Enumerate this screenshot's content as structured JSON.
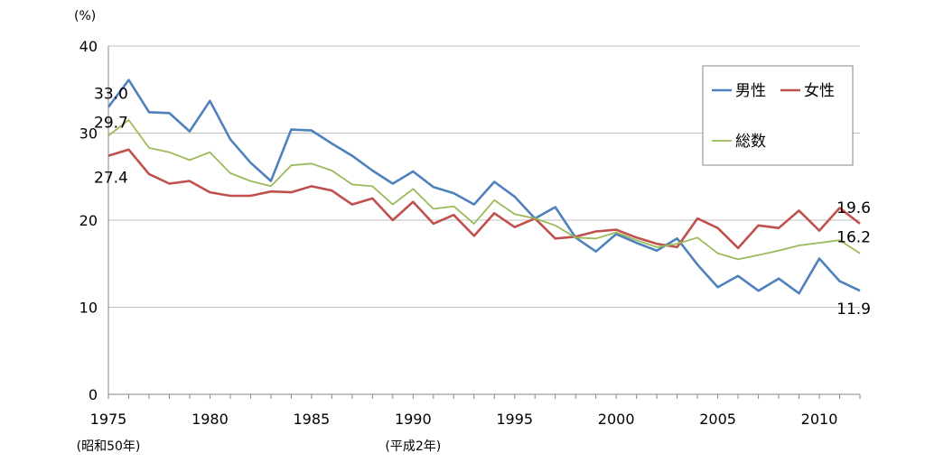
{
  "chart_data": {
    "type": "line",
    "ylabel_unit": "(%)",
    "ylim": [
      0,
      40
    ],
    "yticks": [
      "0",
      "10",
      "20",
      "30",
      "40"
    ],
    "xlim": [
      1975,
      2012
    ],
    "xticks": [
      "1975",
      "1980",
      "1985",
      "1990",
      "1995",
      "2000",
      "2005",
      "2010"
    ],
    "x_sublabels": [
      {
        "at": 1975,
        "text": "(昭和50年)"
      },
      {
        "at": 1990,
        "text": "(平成2年)"
      }
    ],
    "grid": "horizontal",
    "legend_position": "top-right",
    "x": [
      1975,
      1976,
      1977,
      1978,
      1979,
      1980,
      1981,
      1982,
      1983,
      1984,
      1985,
      1986,
      1987,
      1988,
      1989,
      1990,
      1991,
      1992,
      1993,
      1994,
      1995,
      1996,
      1997,
      1998,
      1999,
      2000,
      2001,
      2002,
      2003,
      2004,
      2005,
      2006,
      2007,
      2008,
      2009,
      2010,
      2011,
      2012
    ],
    "series": [
      {
        "name": "男性",
        "color": "#4f81bd",
        "values": [
          33.0,
          36.1,
          32.4,
          32.3,
          30.2,
          33.7,
          29.3,
          26.6,
          24.5,
          30.4,
          30.3,
          28.8,
          27.4,
          25.7,
          24.2,
          25.6,
          23.8,
          23.1,
          21.8,
          24.4,
          22.7,
          20.2,
          21.5,
          18.0,
          16.4,
          18.4,
          17.4,
          16.5,
          17.9,
          14.9,
          12.3,
          13.6,
          11.9,
          13.3,
          11.6,
          15.6,
          13.0,
          11.9
        ]
      },
      {
        "name": "女性",
        "color": "#c0504d",
        "values": [
          27.4,
          28.1,
          25.3,
          24.2,
          24.5,
          23.2,
          22.8,
          22.8,
          23.3,
          23.2,
          23.9,
          23.4,
          21.8,
          22.5,
          20.0,
          22.1,
          19.6,
          20.6,
          18.2,
          20.8,
          19.2,
          20.2,
          17.9,
          18.1,
          18.7,
          18.9,
          18.0,
          17.3,
          16.9,
          20.2,
          19.1,
          16.8,
          19.4,
          19.1,
          21.1,
          18.8,
          21.4,
          19.6
        ]
      },
      {
        "name": "総数",
        "color": "#9bbb59",
        "values": [
          29.7,
          31.5,
          28.3,
          27.8,
          26.9,
          27.8,
          25.4,
          24.5,
          23.9,
          26.3,
          26.5,
          25.7,
          24.1,
          23.9,
          21.8,
          23.6,
          21.3,
          21.6,
          19.6,
          22.3,
          20.7,
          20.2,
          19.4,
          18.0,
          17.9,
          18.6,
          17.7,
          16.9,
          17.3,
          18.0,
          16.2,
          15.5,
          16.0,
          16.5,
          17.1,
          17.4,
          17.7,
          16.2
        ]
      }
    ],
    "data_labels": [
      {
        "series": 0,
        "x": 1975,
        "text": "33.0",
        "pos": "above"
      },
      {
        "series": 2,
        "x": 1975,
        "text": "29.7",
        "pos": "above"
      },
      {
        "series": 1,
        "x": 1975,
        "text": "27.4",
        "pos": "below"
      },
      {
        "series": 1,
        "x": 2012,
        "text": "19.6",
        "pos": "above"
      },
      {
        "series": 2,
        "x": 2012,
        "text": "16.2",
        "pos": "above"
      },
      {
        "series": 0,
        "x": 2012,
        "text": "11.9",
        "pos": "below"
      }
    ]
  }
}
